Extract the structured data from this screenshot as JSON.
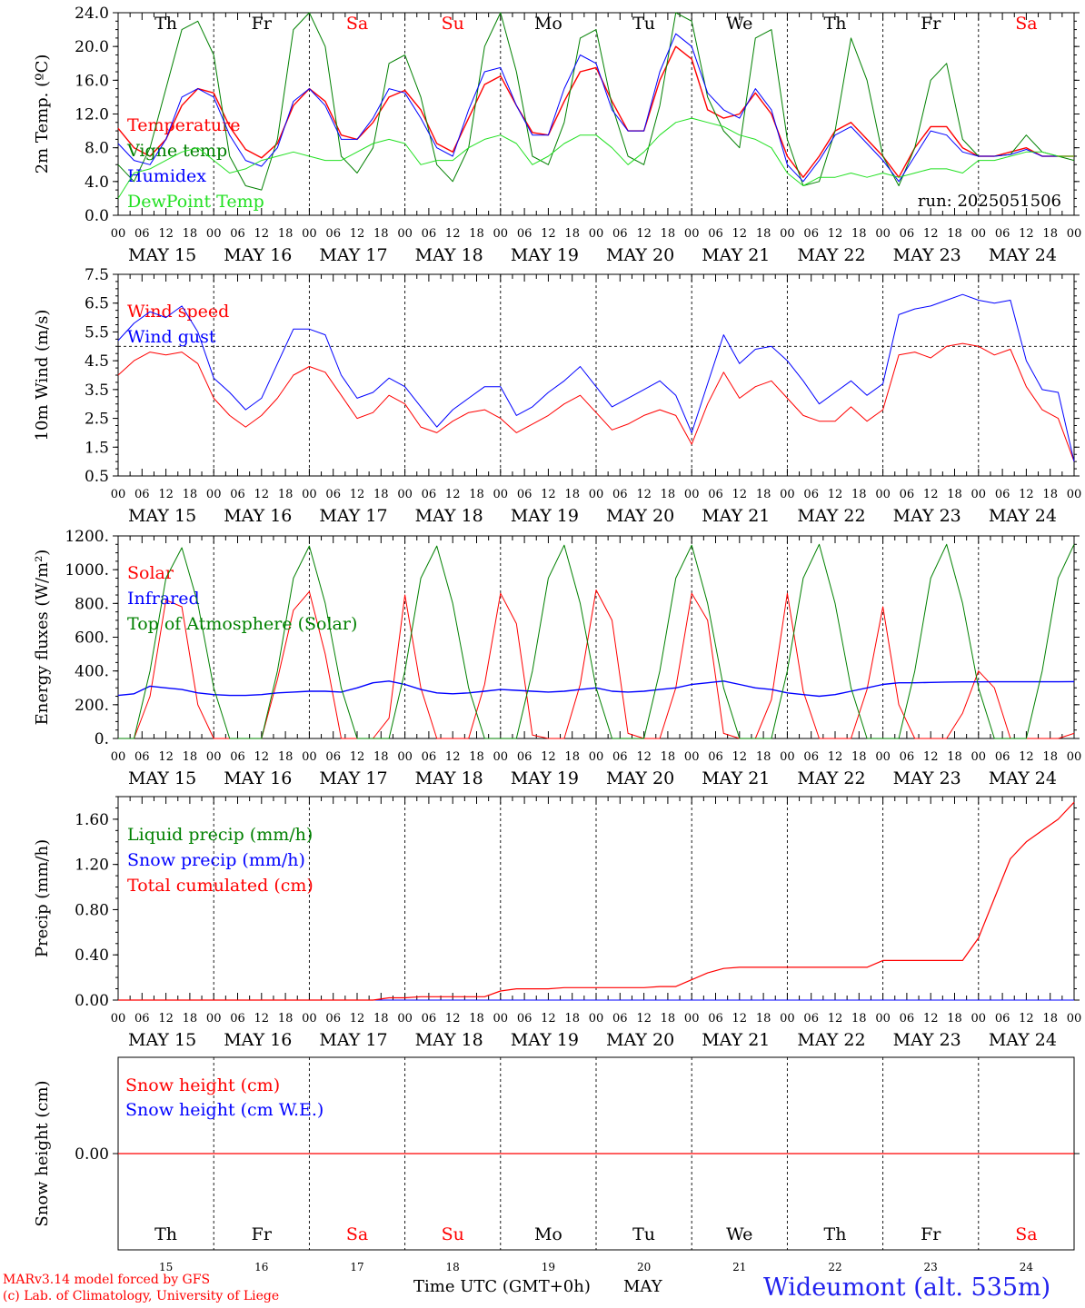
{
  "colors": {
    "red": "#ff0000",
    "blue": "#0000ff",
    "dark_green": "#008000",
    "light_green": "#22e022",
    "black": "#000000",
    "title_blue": "#2222ee"
  },
  "footer": {
    "model_line": "MARv3.14 model forced by GFS",
    "credit_line": "(c) Lab. of Climatology, University of Liege",
    "axis_title": "Time UTC (GMT+0h)",
    "month": "MAY",
    "station": "Wideumont (alt. 535m)"
  },
  "chart_data": [
    {
      "type": "line",
      "ylabel": "2m Temp. (ºC)",
      "ylim": [
        0,
        24
      ],
      "yticks": [
        "0.0",
        "4.0",
        "8.0",
        "12.0",
        "16.0",
        "20.0",
        "24.0"
      ],
      "run_label": "run: 2025051506",
      "day_labels": [
        "Th",
        "Fr",
        "Sa",
        "Su",
        "Mo",
        "Tu",
        "We",
        "Th",
        "Fr",
        "Sa"
      ],
      "date_labels": [
        "MAY 15",
        "MAY 16",
        "MAY 17",
        "MAY 18",
        "MAY 19",
        "MAY 20",
        "MAY 21",
        "MAY 22",
        "MAY 23",
        "MAY 24"
      ],
      "hour_labels": [
        "00",
        "06",
        "12",
        "18"
      ],
      "x_unit": "hours since 2025-05-15 00 UTC (6h steps, 0-240)",
      "series": [
        {
          "name": "Temperature",
          "color": "red",
          "width": 1.4,
          "values": [
            10.3,
            8.0,
            7.0,
            9.0,
            13.0,
            15.0,
            14.5,
            10.5,
            7.8,
            6.8,
            8.5,
            13.0,
            15.0,
            13.5,
            9.5,
            9.0,
            11.0,
            14.0,
            14.8,
            12.5,
            8.5,
            7.5,
            11.5,
            15.5,
            16.5,
            13.0,
            9.8,
            9.5,
            13.5,
            17.0,
            17.5,
            13.5,
            10.0,
            10.0,
            16.0,
            20.0,
            18.5,
            12.5,
            11.5,
            12.0,
            14.5,
            12.0,
            7.0,
            4.5,
            7.0,
            10.0,
            11.0,
            9.0,
            7.0,
            4.5,
            8.0,
            10.5,
            10.5,
            8.0,
            7.0,
            7.0,
            7.5,
            8.0,
            7.0,
            7.0,
            7.0
          ]
        },
        {
          "name": "Vigne temp",
          "color": "dark_green",
          "width": 1.0,
          "values": [
            6.0,
            4.0,
            8.0,
            15.0,
            22.0,
            23.0,
            19.0,
            7.0,
            3.5,
            3.0,
            9.0,
            22.0,
            24.0,
            20.0,
            7.0,
            5.0,
            8.0,
            18.0,
            19.0,
            14.0,
            6.0,
            4.0,
            8.0,
            20.0,
            24.0,
            17.0,
            7.0,
            6.0,
            11.0,
            21.0,
            22.0,
            13.0,
            7.0,
            6.0,
            13.0,
            24.0,
            23.0,
            14.0,
            10.0,
            8.0,
            21.0,
            22.0,
            9.0,
            3.5,
            4.0,
            10.0,
            21.0,
            16.0,
            7.0,
            3.5,
            8.0,
            16.0,
            18.0,
            9.0,
            7.0,
            7.0,
            7.2,
            9.5,
            7.5,
            7.0,
            6.5
          ]
        },
        {
          "name": "Humidex",
          "color": "blue",
          "width": 1.0,
          "values": [
            8.5,
            6.5,
            6.0,
            9.0,
            14.0,
            15.0,
            14.0,
            9.5,
            6.5,
            5.8,
            8.0,
            13.5,
            15.0,
            13.0,
            9.0,
            9.0,
            11.5,
            15.0,
            14.5,
            11.5,
            8.0,
            7.0,
            12.5,
            17.0,
            17.5,
            13.0,
            9.5,
            9.5,
            15.0,
            19.0,
            18.0,
            12.5,
            10.0,
            10.0,
            17.0,
            21.5,
            20.0,
            14.5,
            12.5,
            11.5,
            15.0,
            12.5,
            6.0,
            4.0,
            6.5,
            9.5,
            10.5,
            8.5,
            6.5,
            4.0,
            7.0,
            10.0,
            9.5,
            7.5,
            7.0,
            7.0,
            7.2,
            7.8,
            7.0,
            7.0,
            7.0
          ]
        },
        {
          "name": "DewPoint Temp",
          "color": "light_green",
          "width": 1.0,
          "values": [
            2.0,
            5.0,
            5.5,
            6.5,
            7.5,
            8.0,
            6.5,
            5.0,
            5.5,
            6.5,
            7.0,
            7.5,
            7.0,
            6.5,
            6.5,
            7.5,
            8.5,
            9.0,
            8.5,
            6.0,
            6.5,
            6.5,
            8.0,
            9.0,
            9.5,
            8.5,
            6.0,
            7.0,
            8.5,
            9.5,
            9.5,
            8.0,
            6.0,
            7.5,
            9.5,
            11.0,
            11.5,
            11.0,
            10.5,
            9.5,
            9.0,
            8.0,
            5.0,
            3.5,
            4.5,
            4.5,
            5.0,
            4.5,
            5.0,
            4.5,
            5.0,
            5.5,
            5.5,
            5.0,
            6.5,
            6.5,
            7.0,
            7.5,
            7.5,
            7.0,
            7.0
          ]
        }
      ]
    },
    {
      "type": "line",
      "ylabel": "10m Wind (m/s)",
      "ylim": [
        0.5,
        7.5
      ],
      "yticks": [
        "0.5",
        "1.5",
        "2.5",
        "3.5",
        "4.5",
        "5.5",
        "6.5",
        "7.5"
      ],
      "date_labels": [
        "MAY 15",
        "MAY 16",
        "MAY 17",
        "MAY 18",
        "MAY 19",
        "MAY 20",
        "MAY 21",
        "MAY 22",
        "MAY 23",
        "MAY 24"
      ],
      "hour_labels": [
        "00",
        "06",
        "12",
        "18"
      ],
      "threshold": 5.0,
      "series": [
        {
          "name": "Wind speed",
          "color": "red",
          "width": 1.0,
          "values": [
            4.0,
            4.5,
            4.8,
            4.7,
            4.8,
            4.4,
            3.2,
            2.6,
            2.2,
            2.6,
            3.2,
            4.0,
            4.3,
            4.1,
            3.3,
            2.5,
            2.7,
            3.3,
            3.0,
            2.2,
            2.0,
            2.4,
            2.7,
            2.8,
            2.5,
            2.0,
            2.3,
            2.6,
            3.0,
            3.3,
            2.7,
            2.1,
            2.3,
            2.6,
            2.8,
            2.6,
            1.6,
            3.0,
            4.1,
            3.2,
            3.6,
            3.8,
            3.2,
            2.6,
            2.4,
            2.4,
            2.9,
            2.4,
            2.8,
            4.7,
            4.8,
            4.6,
            5.0,
            5.1,
            5.0,
            4.7,
            4.9,
            3.6,
            2.8,
            2.5,
            1.0
          ]
        },
        {
          "name": "Wind gust",
          "color": "blue",
          "width": 1.0,
          "values": [
            5.2,
            5.8,
            6.2,
            6.0,
            6.4,
            5.5,
            3.9,
            3.4,
            2.8,
            3.2,
            4.4,
            5.6,
            5.6,
            5.4,
            4.0,
            3.2,
            3.4,
            3.9,
            3.6,
            2.9,
            2.2,
            2.8,
            3.2,
            3.6,
            3.6,
            2.6,
            2.9,
            3.4,
            3.8,
            4.3,
            3.6,
            2.9,
            3.2,
            3.5,
            3.8,
            3.3,
            2.0,
            3.7,
            5.4,
            4.4,
            4.9,
            5.0,
            4.5,
            3.8,
            3.0,
            3.4,
            3.8,
            3.3,
            3.7,
            6.1,
            6.3,
            6.4,
            6.6,
            6.8,
            6.6,
            6.5,
            6.6,
            4.5,
            3.5,
            3.4,
            1.0
          ]
        }
      ]
    },
    {
      "type": "line",
      "ylabel": "Energy fluxes (W/m²)",
      "ylim": [
        0,
        1200
      ],
      "yticks": [
        "0.",
        "200.",
        "400.",
        "600.",
        "800.",
        "1000.",
        "1200."
      ],
      "date_labels": [
        "MAY 15",
        "MAY 16",
        "MAY 17",
        "MAY 18",
        "MAY 19",
        "MAY 20",
        "MAY 21",
        "MAY 22",
        "MAY 23",
        "MAY 24"
      ],
      "hour_labels": [
        "00",
        "06",
        "12",
        "18"
      ],
      "series": [
        {
          "name": "Solar",
          "color": "red",
          "width": 1.0,
          "values": [
            0,
            0,
            250,
            820,
            780,
            200,
            0,
            0,
            0,
            0,
            350,
            760,
            870,
            500,
            0,
            0,
            0,
            120,
            850,
            300,
            0,
            0,
            0,
            320,
            860,
            680,
            20,
            0,
            0,
            320,
            880,
            700,
            30,
            0,
            0,
            300,
            860,
            700,
            30,
            0,
            0,
            230,
            860,
            280,
            0,
            0,
            0,
            290,
            780,
            200,
            0,
            0,
            0,
            150,
            400,
            300,
            0,
            0,
            0,
            0,
            30
          ]
        },
        {
          "name": "Infrared",
          "color": "blue",
          "width": 1.4,
          "values": [
            255,
            265,
            310,
            300,
            290,
            270,
            260,
            255,
            255,
            260,
            270,
            275,
            280,
            280,
            275,
            300,
            330,
            340,
            320,
            290,
            270,
            265,
            270,
            280,
            290,
            285,
            280,
            275,
            280,
            290,
            300,
            280,
            275,
            280,
            290,
            300,
            320,
            330,
            340,
            320,
            300,
            290,
            270,
            260,
            250,
            260,
            280,
            300,
            320,
            330,
            330,
            332,
            334,
            335,
            335,
            336,
            336,
            336,
            336,
            336,
            337
          ]
        },
        {
          "name": "Top of Atmosphere (Solar)",
          "color": "dark_green",
          "width": 1.0,
          "values": [
            0,
            0,
            400,
            950,
            1130,
            800,
            300,
            0,
            0,
            0,
            400,
            950,
            1140,
            800,
            300,
            0,
            0,
            0,
            400,
            950,
            1140,
            800,
            300,
            0,
            0,
            0,
            400,
            950,
            1145,
            800,
            300,
            0,
            0,
            0,
            400,
            950,
            1145,
            800,
            300,
            0,
            0,
            0,
            400,
            950,
            1150,
            800,
            300,
            0,
            0,
            0,
            400,
            950,
            1150,
            800,
            300,
            0,
            0,
            0,
            400,
            950,
            1150
          ]
        }
      ]
    },
    {
      "type": "line",
      "ylabel": "Precip (mm/h)",
      "ylim": [
        0,
        1.8
      ],
      "yticks": [
        "0.00",
        "0.40",
        "0.80",
        "1.20",
        "1.60"
      ],
      "date_labels": [
        "MAY 15",
        "MAY 16",
        "MAY 17",
        "MAY 18",
        "MAY 19",
        "MAY 20",
        "MAY 21",
        "MAY 22",
        "MAY 23",
        "MAY 24"
      ],
      "hour_labels": [
        "00",
        "06",
        "12",
        "18"
      ],
      "series": [
        {
          "name": "Liquid precip (mm/h)",
          "color": "dark_green",
          "width": 1.0,
          "values": [
            0,
            0,
            0,
            0,
            0,
            0,
            0,
            0,
            0,
            0,
            0,
            0,
            0,
            0,
            0,
            0,
            0,
            0,
            0,
            0,
            0,
            0,
            0,
            0,
            0,
            0,
            0,
            0,
            0,
            0,
            0,
            0,
            0,
            0,
            0,
            0,
            0,
            0,
            0,
            0,
            0,
            0,
            0,
            0,
            0,
            0,
            0,
            0,
            0,
            0,
            0,
            0,
            0,
            0,
            0,
            0,
            0,
            0,
            0,
            0,
            0
          ]
        },
        {
          "name": "Snow precip (mm/h)",
          "color": "blue",
          "width": 1.0,
          "values": [
            0,
            0,
            0,
            0,
            0,
            0,
            0,
            0,
            0,
            0,
            0,
            0,
            0,
            0,
            0,
            0,
            0,
            0,
            0,
            0,
            0,
            0,
            0,
            0,
            0,
            0,
            0,
            0,
            0,
            0,
            0,
            0,
            0,
            0,
            0,
            0,
            0,
            0,
            0,
            0,
            0,
            0,
            0,
            0,
            0,
            0,
            0,
            0,
            0,
            0,
            0,
            0,
            0,
            0,
            0,
            0,
            0,
            0,
            0,
            0,
            0
          ]
        },
        {
          "name": "Total cumulated (cm)",
          "color": "red",
          "width": 1.2,
          "values": [
            0,
            0,
            0,
            0,
            0,
            0,
            0,
            0,
            0,
            0,
            0,
            0,
            0,
            0,
            0,
            0,
            0,
            0.02,
            0.02,
            0.03,
            0.03,
            0.03,
            0.03,
            0.03,
            0.08,
            0.1,
            0.1,
            0.1,
            0.11,
            0.11,
            0.11,
            0.11,
            0.11,
            0.11,
            0.12,
            0.12,
            0.18,
            0.24,
            0.28,
            0.29,
            0.29,
            0.29,
            0.29,
            0.29,
            0.29,
            0.29,
            0.29,
            0.29,
            0.35,
            0.35,
            0.35,
            0.35,
            0.35,
            0.35,
            0.55,
            0.9,
            1.25,
            1.4,
            1.5,
            1.6,
            1.75
          ]
        }
      ]
    },
    {
      "type": "line",
      "ylabel": "Snow height (cm)",
      "yticks": [
        "0.00"
      ],
      "day_labels": [
        "Th",
        "Fr",
        "Sa",
        "Su",
        "Mo",
        "Tu",
        "We",
        "Th",
        "Fr",
        "Sa"
      ],
      "day_numbers": [
        "15",
        "16",
        "17",
        "18",
        "19",
        "20",
        "21",
        "22",
        "23",
        "24"
      ],
      "series": [
        {
          "name": "Snow height (cm)",
          "color": "red",
          "width": 1.2,
          "values": [
            0,
            0
          ]
        },
        {
          "name": "Snow height (cm W.E.)",
          "color": "blue",
          "width": 1.0,
          "values": [
            0,
            0
          ]
        }
      ]
    }
  ]
}
